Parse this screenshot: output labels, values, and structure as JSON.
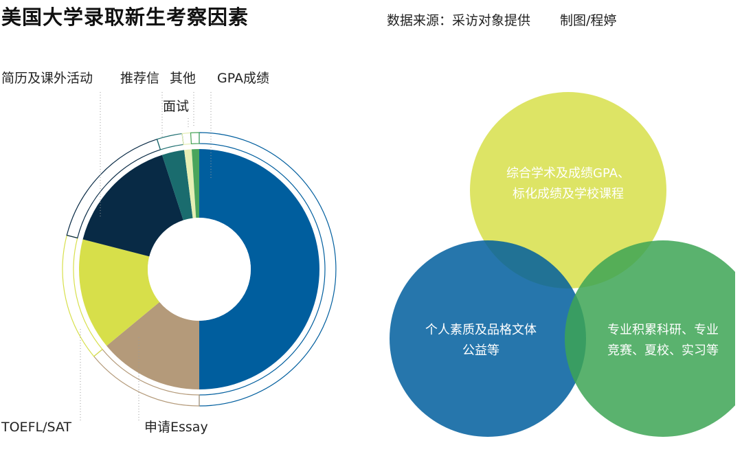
{
  "header": {
    "title": "美国大学录取新生考察因素",
    "source": "数据来源：采访对象提供",
    "credit": "制图/程婷"
  },
  "chart_data": [
    {
      "type": "pie",
      "donut": true,
      "title": "",
      "categories": [
        "GPA成绩",
        "申请Essay",
        "TOEFL/SAT",
        "简历及课外活动",
        "推荐信",
        "面试",
        "其他"
      ],
      "values": [
        50,
        14,
        15,
        16,
        3,
        1,
        1
      ],
      "colors": [
        "#005e9e",
        "#b49a7a",
        "#d7df4a",
        "#082a45",
        "#1a6c6e",
        "#e6efb4",
        "#4aa55c"
      ]
    },
    {
      "type": "venn",
      "sets": [
        {
          "label_lines": [
            "综合学术及成绩GPA、",
            "标化成绩及学校课程"
          ],
          "color": "#d7df4a"
        },
        {
          "label_lines": [
            "个人素质及品格文体",
            "公益等"
          ],
          "color": "#005e9e"
        },
        {
          "label_lines": [
            "专业积累科研、专业",
            "竞赛、夏校、实习等"
          ],
          "color": "#3da455"
        }
      ]
    }
  ]
}
